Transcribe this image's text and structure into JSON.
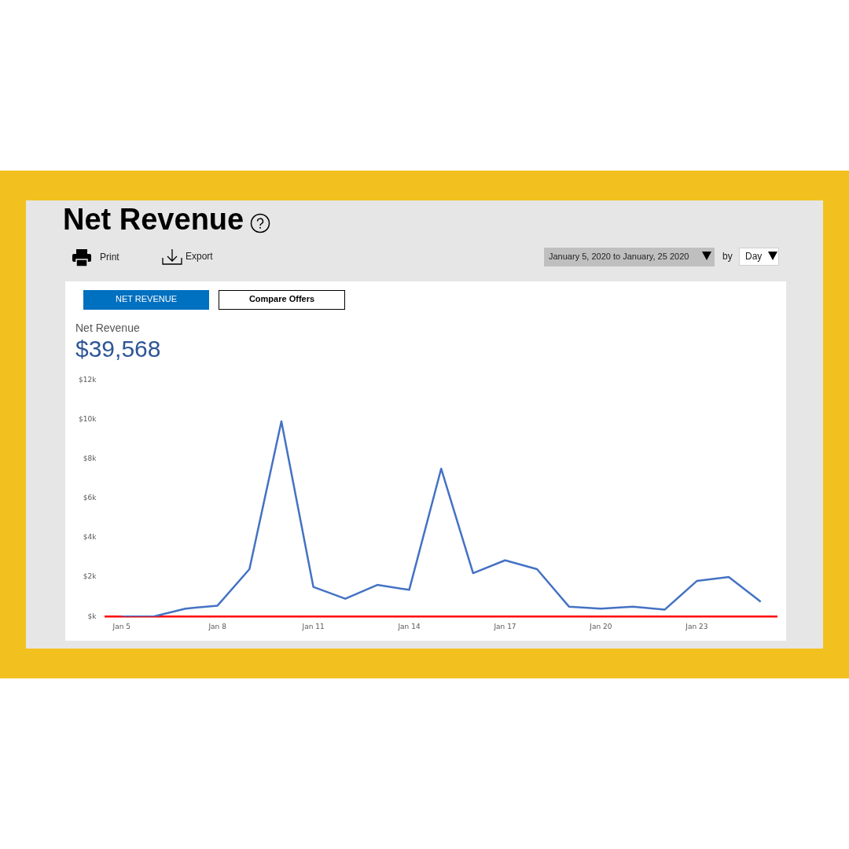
{
  "chart_data": {
    "type": "line",
    "title": "Net Revenue",
    "categories": [
      "Jan 5",
      null,
      null,
      "Jan 8",
      null,
      null,
      "Jan 11",
      null,
      null,
      "Jan 14",
      null,
      null,
      "Jan 17",
      null,
      null,
      "Jan 20",
      null,
      null,
      "Jan 23",
      null,
      null
    ],
    "values": [
      0,
      0,
      0.4,
      0.55,
      2.4,
      9.9,
      1.5,
      0.9,
      1.6,
      1.35,
      7.5,
      2.2,
      2.85,
      2.4,
      0.5,
      0.4,
      0.5,
      0.35,
      1.8,
      2.0,
      0.75
    ],
    "color": "#4472c4",
    "marker": "none",
    "line_style": "solid",
    "ylim": [
      0,
      12
    ],
    "yticks": [
      {
        "value": 0,
        "label": "$k"
      },
      {
        "value": 2,
        "label": "$2k"
      },
      {
        "value": 4,
        "label": "$4k"
      },
      {
        "value": 6,
        "label": "$6k"
      },
      {
        "value": 8,
        "label": "$8k"
      },
      {
        "value": 10,
        "label": "$10k"
      },
      {
        "value": 12,
        "label": "$12k"
      }
    ],
    "annotations": [
      "Print",
      "Export",
      "January 5, 2020 to January, 25 2020",
      "by",
      "Day",
      "NET REVENUE",
      "Compare Offers",
      "Net Revenue",
      "$39,568"
    ]
  }
}
